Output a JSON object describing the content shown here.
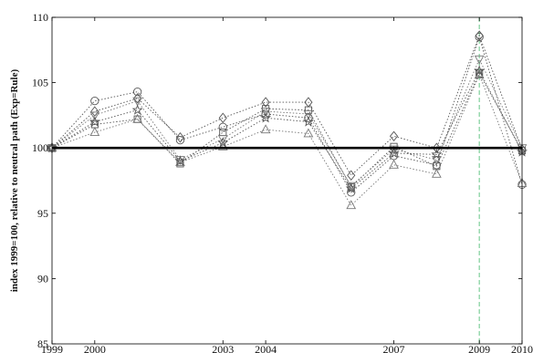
{
  "chart_data": {
    "type": "line",
    "title": "",
    "xlabel": "",
    "ylabel": "index 1999=100, relative to neutral path (Exp=Rule)",
    "xlim": [
      1999,
      2010
    ],
    "ylim": [
      85,
      110
    ],
    "x": [
      1999,
      2000,
      2001,
      2002,
      2003,
      2004,
      2005,
      2006,
      2007,
      2008,
      2009,
      2010
    ],
    "x_tick_values": [
      1999,
      2000,
      2003,
      2004,
      2007,
      2009,
      2010
    ],
    "x_tick_labels": [
      "1999",
      "2000",
      "2003",
      "2004",
      "2007",
      "2009",
      "2010"
    ],
    "y_tick_values": [
      85,
      90,
      95,
      100,
      105,
      110
    ],
    "y_tick_labels": [
      "85",
      "90",
      "95",
      "100",
      "105",
      "110"
    ],
    "grid": false,
    "legend": "none",
    "reference_line": {
      "y": 100,
      "color": "#000000"
    },
    "vertical_marker": {
      "x": 2009,
      "color": "#7fcf9a"
    },
    "series": [
      {
        "marker": "circle",
        "color": "#555555",
        "values": [
          100,
          103.6,
          104.3,
          100.6,
          101.6,
          102.6,
          102.3,
          96.6,
          99.4,
          98.7,
          108.5,
          97.2
        ]
      },
      {
        "marker": "diamond",
        "color": "#555555",
        "values": [
          100,
          102.8,
          103.8,
          100.8,
          102.3,
          103.5,
          103.5,
          97.9,
          100.9,
          100.0,
          108.6,
          99.9
        ]
      },
      {
        "marker": "square",
        "color": "#555555",
        "values": [
          100,
          101.8,
          102.2,
          98.8,
          101.2,
          103.0,
          102.9,
          97.0,
          100.1,
          98.6,
          105.7,
          99.8
        ]
      },
      {
        "marker": "triangle-up",
        "color": "#777777",
        "values": [
          100,
          101.2,
          102.2,
          98.9,
          100.1,
          101.4,
          101.1,
          95.6,
          98.7,
          98.0,
          105.6,
          97.3
        ]
      },
      {
        "marker": "triangle-down",
        "color": "#777777",
        "values": [
          100,
          102.5,
          103.6,
          99.1,
          100.7,
          102.8,
          102.6,
          97.1,
          99.9,
          99.1,
          106.8,
          100.0
        ]
      },
      {
        "marker": "star",
        "color": "#555555",
        "values": [
          100,
          102.0,
          102.9,
          99.0,
          100.4,
          102.3,
          102.0,
          96.9,
          99.6,
          99.5,
          105.9,
          99.7
        ]
      }
    ]
  }
}
